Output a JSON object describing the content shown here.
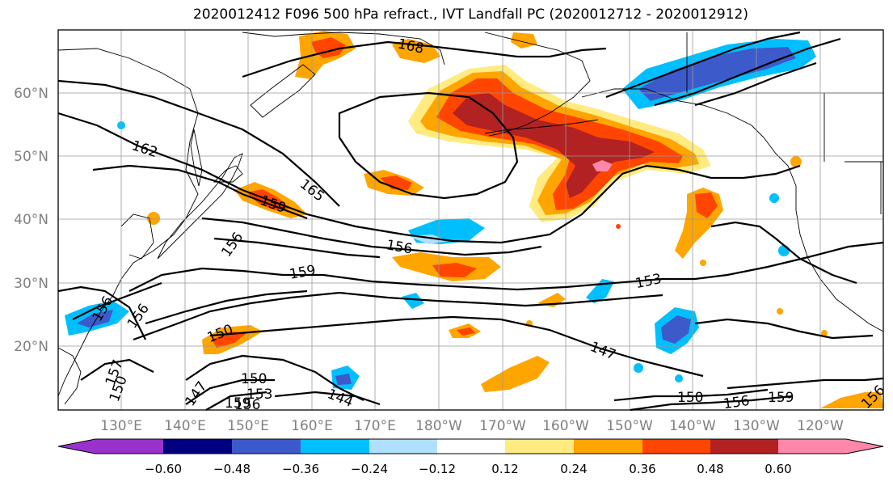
{
  "title": "2020012412 F096 500 hPa refract., IVT Landfall PC (2020012712 - 2020012912)",
  "lat_labels": [
    "60°N",
    "50°N",
    "40°N",
    "30°N",
    "20°N"
  ],
  "lon_labels": [
    "130°E",
    "140°E",
    "150°E",
    "160°E",
    "170°E",
    "180°W",
    "170°W",
    "160°W",
    "150°W",
    "140°W",
    "130°W",
    "120°W"
  ],
  "contour_labels": [
    "168",
    "162",
    "165",
    "159",
    "156",
    "156",
    "159",
    "153",
    "150",
    "156",
    "147",
    "150",
    "147",
    "153",
    "159",
    "156",
    "144",
    "150",
    "156",
    "159",
    "156",
    "156",
    "157",
    "150"
  ],
  "colorbar": {
    "ticks": [
      "−0.60",
      "−0.48",
      "−0.36",
      "−0.24",
      "−0.12",
      "0.12",
      "0.24",
      "0.36",
      "0.48",
      "0.60"
    ],
    "colors": [
      "#9932cc",
      "#000080",
      "#3d5acb",
      "#00bfff",
      "#b0e0ff",
      "#ffffff",
      "#ffeb80",
      "#ffa500",
      "#ff4500",
      "#b22222",
      "#ff88aa"
    ]
  },
  "fill_colors": {
    "light_yellow": "#ffeb80",
    "orange": "#ffa500",
    "red_orange": "#ff4500",
    "dark_red": "#b22222",
    "pink": "#ff88aa",
    "light_blue": "#b0e0ff",
    "sky_blue": "#00bfff",
    "royal_blue": "#3d5acb"
  }
}
